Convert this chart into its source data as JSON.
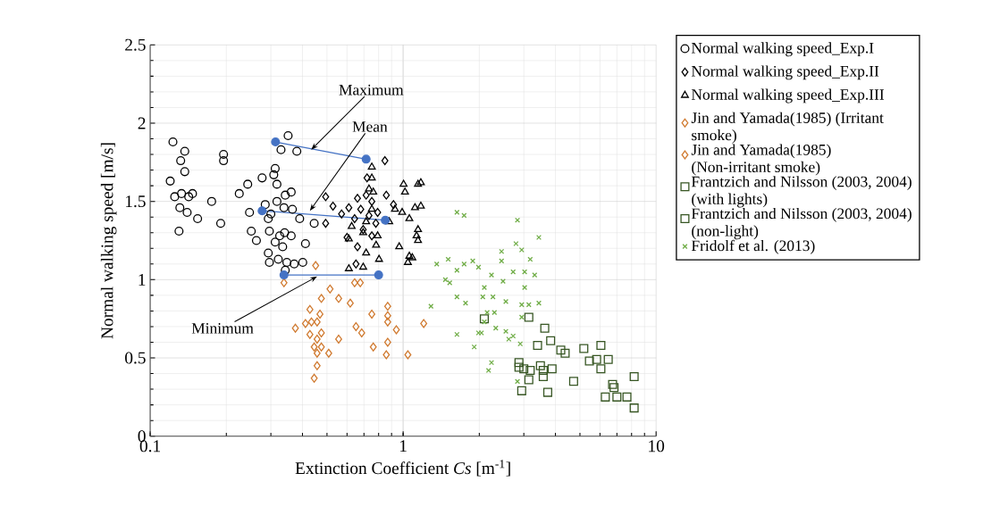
{
  "chart_data": {
    "type": "scatter",
    "xlabel": "Extinction Coefficient *Cs* [m$^{-1}$]",
    "ylabel": "Normal walking speed [m/s]",
    "log": "x",
    "xlim": [
      0.1,
      10
    ],
    "xticks": [
      0.1,
      1,
      10
    ],
    "ylim": [
      0,
      2.5
    ],
    "yticks": [
      0,
      0.5,
      1,
      1.5,
      2,
      2.5
    ],
    "grid": true,
    "legend": "right",
    "annotations": [
      {
        "text": "Maximum",
        "x": 0.433,
        "y": 1.83
      },
      {
        "text": "Mean",
        "x": 0.428,
        "y": 1.44
      },
      {
        "text": "Minimum",
        "x": 0.457,
        "y": 1.02
      }
    ],
    "series": [
      {
        "name": "Normal walking speed_Exp.I",
        "color": "#000000",
        "marker": "circle",
        "x": [
          0.123,
          0.137,
          0.132,
          0.137,
          0.12,
          0.125,
          0.133,
          0.142,
          0.147,
          0.131,
          0.14,
          0.154,
          0.13,
          0.175,
          0.19,
          0.195,
          0.195,
          0.243,
          0.225,
          0.247,
          0.251,
          0.263,
          0.285,
          0.293,
          0.296,
          0.312,
          0.308,
          0.317,
          0.351,
          0.329,
          0.38,
          0.317,
          0.338,
          0.342,
          0.361,
          0.365,
          0.39,
          0.312,
          0.325,
          0.34,
          0.361,
          0.334,
          0.293,
          0.296,
          0.321,
          0.347,
          0.371,
          0.401,
          0.411,
          0.342,
          0.445,
          0.277,
          0.3
        ],
        "values": [
          1.88,
          1.82,
          1.76,
          1.69,
          1.63,
          1.53,
          1.55,
          1.53,
          1.55,
          1.46,
          1.43,
          1.39,
          1.31,
          1.5,
          1.36,
          1.8,
          1.76,
          1.61,
          1.55,
          1.43,
          1.31,
          1.25,
          1.48,
          1.39,
          1.31,
          1.71,
          1.67,
          1.61,
          1.92,
          1.83,
          1.82,
          1.5,
          1.46,
          1.54,
          1.56,
          1.45,
          1.39,
          1.24,
          1.28,
          1.3,
          1.28,
          1.21,
          1.17,
          1.11,
          1.13,
          1.11,
          1.1,
          1.11,
          1.23,
          1.06,
          1.36,
          1.65,
          1.42
        ]
      },
      {
        "name": "Normal walking speed_Exp.II",
        "color": "#000000",
        "marker": "diamond",
        "x": [
          0.494,
          0.528,
          0.494,
          0.571,
          0.61,
          0.66,
          0.714,
          0.643,
          0.695,
          0.66,
          0.651,
          0.752,
          0.793,
          0.858,
          0.916,
          0.847,
          0.752,
          0.733,
          0.72,
          0.78,
          0.68,
          0.6
        ],
        "values": [
          1.53,
          1.47,
          1.36,
          1.42,
          1.46,
          1.52,
          1.54,
          1.39,
          1.32,
          1.21,
          1.1,
          1.5,
          1.43,
          1.54,
          1.48,
          1.76,
          1.28,
          1.41,
          1.65,
          1.36,
          1.45,
          1.27
        ]
      },
      {
        "name": "Normal walking speed_Exp.III",
        "color": "#000000",
        "marker": "triangle",
        "x": [
          0.752,
          0.752,
          0.733,
          0.762,
          0.752,
          0.714,
          0.626,
          0.61,
          0.695,
          0.793,
          0.782,
          0.803,
          0.714,
          0.61,
          0.695,
          0.928,
          0.881,
          1.004,
          1.017,
          0.991,
          1.058,
          0.965,
          1.058,
          1.145,
          1.13,
          1.145,
          1.114,
          1.175,
          1.175,
          1.145,
          1.087,
          1.044
        ],
        "values": [
          1.72,
          1.65,
          1.58,
          1.56,
          1.45,
          1.37,
          1.34,
          1.26,
          1.3,
          1.28,
          1.22,
          1.13,
          1.17,
          1.07,
          1.08,
          1.45,
          1.37,
          1.61,
          1.56,
          1.43,
          1.39,
          1.21,
          1.15,
          1.32,
          1.28,
          1.61,
          1.46,
          1.62,
          1.47,
          1.25,
          1.14,
          1.11
        ]
      },
      {
        "name": "Jin and Yamada(1985) (Irritant smoke)",
        "color": "#d07a30",
        "marker": "diamond",
        "x": [
          0.338,
          0.451,
          0.514,
          0.475,
          0.428,
          0.469,
          0.375,
          0.411,
          0.434,
          0.457,
          0.428,
          0.475,
          0.457,
          0.445,
          0.475,
          0.508,
          0.457,
          0.457,
          0.445
        ],
        "values": [
          0.98,
          1.09,
          0.94,
          0.88,
          0.81,
          0.78,
          0.69,
          0.72,
          0.73,
          0.73,
          0.65,
          0.66,
          0.62,
          0.57,
          0.57,
          0.53,
          0.53,
          0.45,
          0.37
        ]
      },
      {
        "name": "Jin and Yamada(1985) (Non-irritant smoke)",
        "color": "#d07a30",
        "marker": "diamond",
        "x": [
          0.556,
          0.618,
          0.643,
          0.677,
          0.752,
          0.869,
          0.869,
          0.869,
          0.651,
          0.686,
          0.94,
          0.556,
          0.762,
          0.869,
          0.858,
          1.044,
          1.206
        ],
        "values": [
          0.88,
          0.85,
          0.98,
          0.98,
          0.78,
          0.83,
          0.77,
          0.73,
          0.7,
          0.66,
          0.68,
          0.62,
          0.57,
          0.6,
          0.52,
          0.52,
          0.72
        ]
      },
      {
        "name": "Frantzich and Nilsson (2003, 2004) (with lights)",
        "color": "#375623",
        "marker": "square",
        "x": [
          2.094,
          3.14,
          3.83,
          4.2,
          4.37,
          5.18,
          6.05,
          6.47,
          6.05,
          5.82,
          8.19,
          4.72,
          3.73,
          6.73,
          6.82,
          6.3,
          7.0,
          7.67,
          8.19,
          3.88,
          3.49
        ],
        "values": [
          0.75,
          0.76,
          0.61,
          0.55,
          0.53,
          0.56,
          0.58,
          0.49,
          0.43,
          0.49,
          0.38,
          0.35,
          0.28,
          0.33,
          0.31,
          0.25,
          0.25,
          0.25,
          0.18,
          0.43,
          0.45
        ]
      },
      {
        "name": "Frantzich and Nilsson (2003, 2004) (non-light)",
        "color": "#375623",
        "marker": "square",
        "x": [
          3.63,
          3.4,
          2.87,
          3.0,
          3.18,
          3.58,
          3.58,
          3.14,
          2.943,
          5.45,
          2.87
        ],
        "values": [
          0.69,
          0.58,
          0.44,
          0.43,
          0.42,
          0.42,
          0.38,
          0.36,
          0.29,
          0.48,
          0.47
        ]
      },
      {
        "name": "Fridolf et al. (2013)",
        "color": "#70ad47",
        "marker": "cross",
        "x": [
          1.632,
          1.742,
          2.831,
          3.44,
          2.793,
          2.943,
          2.449,
          3.18,
          2.449,
          1.507,
          1.358,
          1.742,
          1.885,
          1.986,
          1.632,
          2.235,
          2.722,
          3.022,
          3.31,
          1.469,
          1.528,
          2.094,
          2.483,
          3.022,
          1.632,
          1.765,
          2.065,
          2.265,
          2.547,
          2.943,
          3.14,
          3.44,
          1.288,
          2.148,
          2.295,
          2.943,
          2.094,
          1.986,
          1.632,
          2.324,
          2.547,
          2.722,
          2.904,
          1.91,
          2.235,
          2.177,
          2.831,
          2.04,
          2.616
        ],
        "values": [
          1.43,
          1.41,
          1.38,
          1.27,
          1.23,
          1.19,
          1.18,
          1.13,
          1.12,
          1.13,
          1.1,
          1.1,
          1.12,
          1.08,
          1.06,
          1.03,
          1.05,
          1.05,
          1.03,
          1.0,
          0.98,
          0.95,
          0.99,
          0.95,
          0.89,
          0.85,
          0.89,
          0.89,
          0.86,
          0.84,
          0.84,
          0.85,
          0.83,
          0.79,
          0.79,
          0.76,
          0.73,
          0.66,
          0.65,
          0.69,
          0.67,
          0.64,
          0.59,
          0.57,
          0.47,
          0.42,
          0.35,
          0.66,
          0.62
        ]
      },
      {
        "type": "line",
        "color": "#4472c4",
        "marker": "circle",
        "x": [
          0.313,
          0.714
        ],
        "values": [
          1.88,
          1.77
        ]
      },
      {
        "type": "line",
        "color": "#4472c4",
        "marker": "circle",
        "x": [
          0.277,
          0.85
        ],
        "values": [
          1.44,
          1.38
        ]
      },
      {
        "type": "line",
        "color": "#4472c4",
        "marker": "circle",
        "x": [
          0.338,
          0.8
        ],
        "values": [
          1.03,
          1.03
        ]
      }
    ]
  }
}
